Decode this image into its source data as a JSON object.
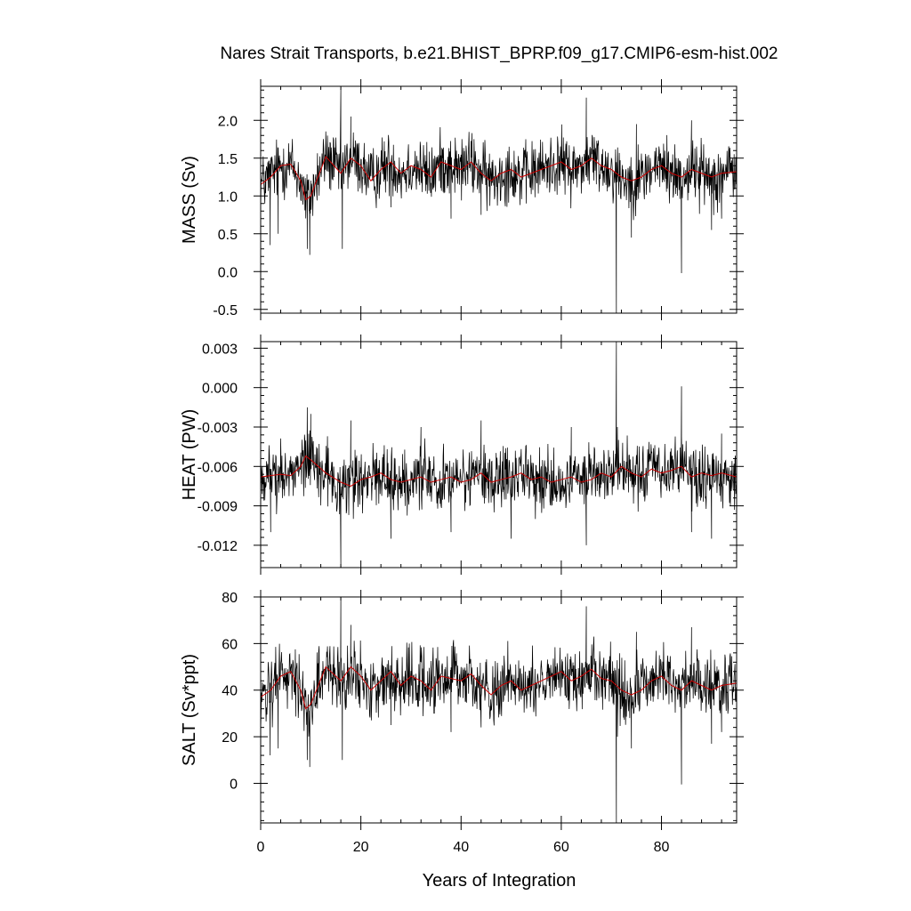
{
  "title": "Nares Strait Transports, b.e21.BHIST_BPRP.f09_g17.CMIP6-esm-hist.002",
  "xlabel": "Years of Integration",
  "colors": {
    "raw": "#000000",
    "smooth": "#cc0000"
  },
  "chart_data": [
    {
      "type": "line",
      "ylabel": "MASS (Sv)",
      "xlim": [
        0,
        95
      ],
      "ylim": [
        -0.55,
        2.45
      ],
      "yticks": [
        -0.5,
        0.0,
        0.5,
        1.0,
        1.5,
        2.0
      ],
      "ytick_labels": [
        "-0.5",
        "0.0",
        "0.5",
        "1.0",
        "1.5",
        "2.0"
      ],
      "xticks": [
        0,
        20,
        40,
        60,
        80
      ],
      "xtick_labels": [
        "0",
        "20",
        "40",
        "60",
        "80"
      ],
      "series": [
        {
          "style": "monthly-black",
          "spikes": [
            [
              1.9,
              0.35
            ],
            [
              3.5,
              0.5
            ],
            [
              9.3,
              0.3
            ],
            [
              9.8,
              0.22
            ],
            [
              16.0,
              2.42
            ],
            [
              16.3,
              0.3
            ],
            [
              18.0,
              2.05
            ],
            [
              26.0,
              0.85
            ],
            [
              38.0,
              0.7
            ],
            [
              44.0,
              0.75
            ],
            [
              65.0,
              2.3
            ],
            [
              71.0,
              -0.55
            ],
            [
              74.0,
              0.45
            ],
            [
              75.0,
              1.95
            ],
            [
              84.0,
              -0.02
            ],
            [
              86.0,
              2.0
            ],
            [
              90.0,
              0.55
            ],
            [
              92.0,
              0.7
            ]
          ]
        },
        {
          "style": "smoothed-red",
          "x": [
            0,
            2,
            4,
            6,
            8,
            9,
            10,
            13,
            16,
            18,
            20,
            22,
            24,
            26,
            28,
            30,
            32,
            34,
            36,
            38,
            40,
            42,
            44,
            46,
            48,
            50,
            52,
            54,
            56,
            58,
            60,
            62,
            64,
            66,
            68,
            70,
            72,
            74,
            76,
            78,
            80,
            82,
            84,
            86,
            88,
            90,
            92,
            95
          ],
          "y": [
            1.15,
            1.25,
            1.4,
            1.42,
            1.2,
            0.95,
            1.0,
            1.52,
            1.3,
            1.5,
            1.4,
            1.2,
            1.35,
            1.45,
            1.3,
            1.4,
            1.35,
            1.25,
            1.45,
            1.4,
            1.35,
            1.45,
            1.3,
            1.2,
            1.3,
            1.35,
            1.25,
            1.3,
            1.35,
            1.4,
            1.45,
            1.35,
            1.4,
            1.5,
            1.4,
            1.35,
            1.25,
            1.2,
            1.25,
            1.35,
            1.4,
            1.3,
            1.25,
            1.35,
            1.3,
            1.25,
            1.3,
            1.32
          ]
        }
      ]
    },
    {
      "type": "line",
      "ylabel": "HEAT (PW)",
      "xlim": [
        0,
        95
      ],
      "ylim": [
        -0.0137,
        0.0035
      ],
      "yticks": [
        -0.012,
        -0.009,
        -0.006,
        -0.003,
        0.0,
        0.003
      ],
      "ytick_labels": [
        "-0.012",
        "-0.009",
        "-0.006",
        "-0.003",
        "0.000",
        "0.003"
      ],
      "xticks": [
        0,
        20,
        40,
        60,
        80
      ],
      "xtick_labels": [
        "0",
        "20",
        "40",
        "60",
        "80"
      ],
      "series": [
        {
          "style": "monthly-black",
          "spikes": [
            [
              2.0,
              -0.011
            ],
            [
              9.3,
              -0.0015
            ],
            [
              10.0,
              -0.002
            ],
            [
              16.0,
              -0.0137
            ],
            [
              18.0,
              -0.0025
            ],
            [
              26.0,
              -0.0115
            ],
            [
              32.0,
              -0.003
            ],
            [
              38.0,
              -0.011
            ],
            [
              44.0,
              -0.0025
            ],
            [
              50.0,
              -0.0115
            ],
            [
              62.0,
              -0.003
            ],
            [
              65.0,
              -0.012
            ],
            [
              71.0,
              0.0035
            ],
            [
              71.2,
              -0.003
            ],
            [
              84.0,
              0.0001
            ],
            [
              86.0,
              -0.011
            ],
            [
              90.0,
              -0.0115
            ],
            [
              92.0,
              -0.0035
            ]
          ]
        },
        {
          "style": "smoothed-red",
          "x": [
            0,
            2,
            4,
            6,
            8,
            9,
            10,
            13,
            16,
            18,
            20,
            22,
            24,
            26,
            28,
            30,
            32,
            34,
            36,
            38,
            40,
            42,
            44,
            46,
            48,
            50,
            52,
            54,
            56,
            58,
            60,
            62,
            64,
            66,
            68,
            70,
            72,
            74,
            76,
            78,
            80,
            82,
            84,
            86,
            88,
            90,
            92,
            95
          ],
          "y": [
            -0.0068,
            -0.0067,
            -0.0066,
            -0.0067,
            -0.006,
            -0.0052,
            -0.0055,
            -0.0065,
            -0.0072,
            -0.0075,
            -0.007,
            -0.0068,
            -0.0065,
            -0.007,
            -0.0072,
            -0.007,
            -0.0068,
            -0.0072,
            -0.007,
            -0.0068,
            -0.0072,
            -0.007,
            -0.0065,
            -0.0072,
            -0.007,
            -0.0068,
            -0.0065,
            -0.007,
            -0.0068,
            -0.0072,
            -0.007,
            -0.0068,
            -0.0072,
            -0.007,
            -0.0065,
            -0.0068,
            -0.006,
            -0.0065,
            -0.0068,
            -0.0062,
            -0.0065,
            -0.0063,
            -0.006,
            -0.0068,
            -0.0065,
            -0.0067,
            -0.0065,
            -0.0068
          ]
        }
      ]
    },
    {
      "type": "line",
      "ylabel": "SALT (Sv*ppt)",
      "xlim": [
        0,
        95
      ],
      "ylim": [
        -17,
        80
      ],
      "yticks": [
        0,
        20,
        40,
        60,
        80
      ],
      "ytick_labels": [
        "0",
        "20",
        "40",
        "60",
        "80"
      ],
      "xticks": [
        0,
        20,
        40,
        60,
        80
      ],
      "xtick_labels": [
        "0",
        "20",
        "40",
        "60",
        "80"
      ],
      "series": [
        {
          "style": "monthly-black",
          "spikes": [
            [
              1.9,
              12
            ],
            [
              3.5,
              15
            ],
            [
              9.3,
              10
            ],
            [
              9.8,
              7
            ],
            [
              16.0,
              80
            ],
            [
              16.3,
              10
            ],
            [
              18.0,
              68
            ],
            [
              26.0,
              25
            ],
            [
              38.0,
              22
            ],
            [
              44.0,
              24
            ],
            [
              65.0,
              76
            ],
            [
              71.0,
              -17
            ],
            [
              71.2,
              20
            ],
            [
              74.0,
              15
            ],
            [
              75.0,
              65
            ],
            [
              84.0,
              -0.5
            ],
            [
              86.0,
              67
            ],
            [
              90.0,
              17
            ],
            [
              92.0,
              22
            ]
          ]
        },
        {
          "style": "smoothed-red",
          "x": [
            0,
            2,
            4,
            6,
            8,
            9,
            10,
            13,
            16,
            18,
            20,
            22,
            24,
            26,
            28,
            30,
            32,
            34,
            36,
            38,
            40,
            42,
            44,
            46,
            48,
            50,
            52,
            54,
            56,
            58,
            60,
            62,
            64,
            66,
            68,
            70,
            72,
            74,
            76,
            78,
            80,
            82,
            84,
            86,
            88,
            90,
            92,
            95
          ],
          "y": [
            37,
            40,
            46,
            48,
            40,
            32,
            34,
            50,
            44,
            50,
            46,
            40,
            44,
            48,
            42,
            46,
            44,
            40,
            46,
            45,
            44,
            47,
            42,
            38,
            42,
            44,
            40,
            42,
            44,
            46,
            48,
            44,
            46,
            49,
            45,
            44,
            40,
            38,
            40,
            44,
            46,
            42,
            40,
            44,
            42,
            40,
            42,
            43
          ]
        }
      ]
    }
  ]
}
